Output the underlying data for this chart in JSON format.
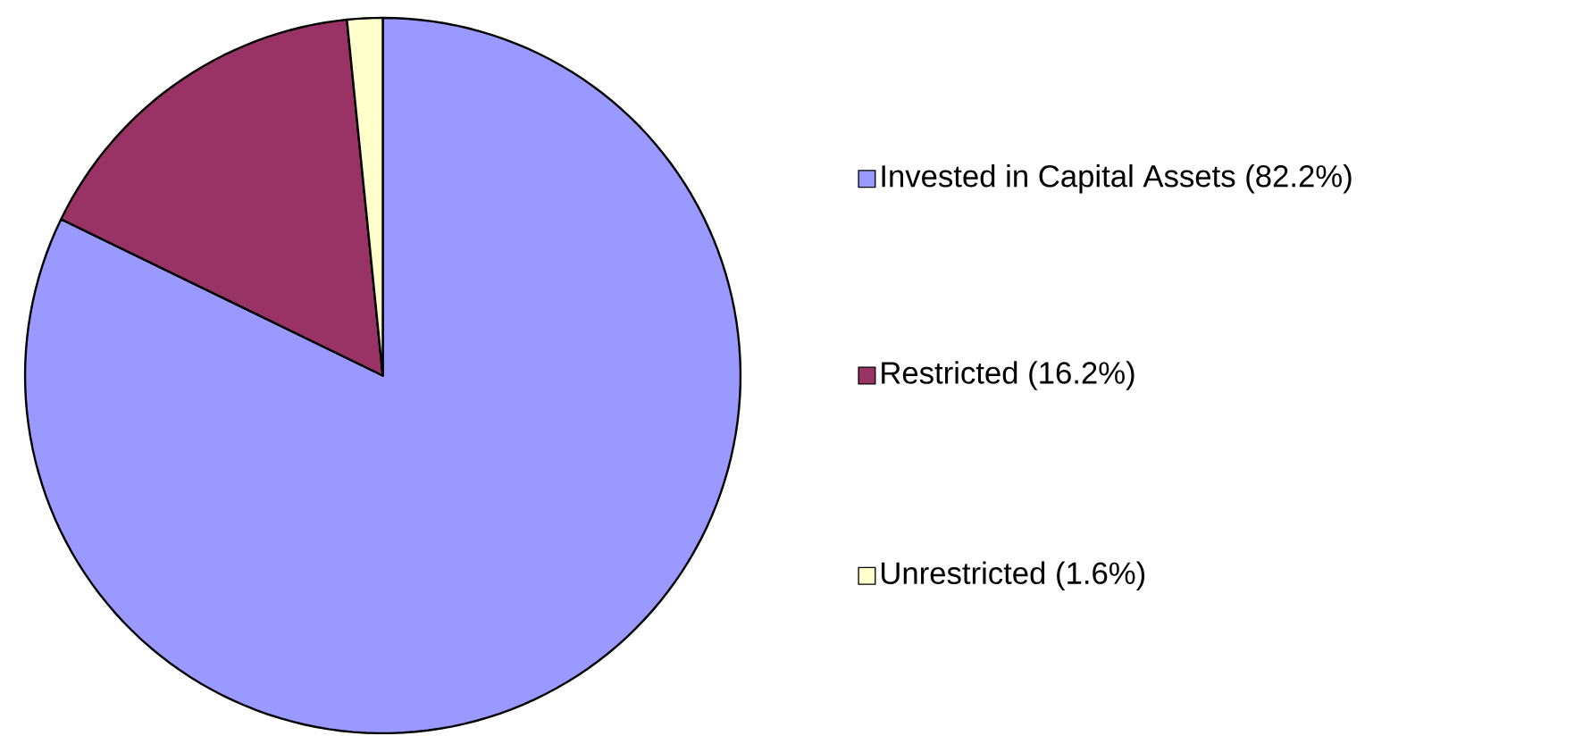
{
  "chart_data": {
    "type": "pie",
    "categories": [
      "Invested in Capital Assets (82.2%)",
      "Restricted (16.2%)",
      "Unrestricted (1.6%)"
    ],
    "values": [
      82.2,
      16.2,
      1.6
    ],
    "colors": [
      "#9999ff",
      "#993366",
      "#ffffcc"
    ],
    "legend": "right"
  }
}
